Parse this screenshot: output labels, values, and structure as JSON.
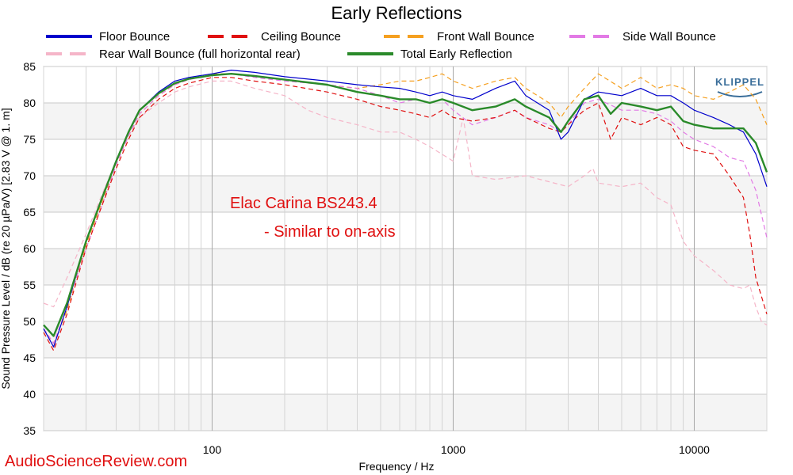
{
  "chart_data": {
    "type": "line",
    "title": "Early Reflections",
    "xlabel": "Frequency / Hz",
    "ylabel": "Sound Pressure Level / dB (re 20 µPa/V)  [2.83  V @ 1. m]",
    "x_scale": "log",
    "xlim": [
      20,
      20000
    ],
    "ylim": [
      35,
      85
    ],
    "x_ticks": [
      100,
      1000,
      10000
    ],
    "x_tick_labels": [
      "100",
      "1000",
      "10000"
    ],
    "y_ticks": [
      35,
      40,
      45,
      50,
      55,
      60,
      65,
      70,
      75,
      80,
      85
    ],
    "y_tick_labels": [
      "35",
      "40",
      "45",
      "50",
      "55",
      "60",
      "65",
      "70",
      "75",
      "80",
      "85"
    ],
    "grid": true,
    "legend_position": "top",
    "annotations": [
      "Elac Carina BS243.4",
      "- Similar to on-axis"
    ],
    "series": [
      {
        "name": "Floor Bounce",
        "color": "#0000cc",
        "dash": "solid",
        "points": [
          [
            20,
            49
          ],
          [
            22,
            46.5
          ],
          [
            25,
            52
          ],
          [
            30,
            61
          ],
          [
            35,
            67
          ],
          [
            40,
            72
          ],
          [
            45,
            76
          ],
          [
            50,
            79
          ],
          [
            60,
            81.5
          ],
          [
            70,
            83
          ],
          [
            80,
            83.5
          ],
          [
            100,
            84
          ],
          [
            120,
            84.5
          ],
          [
            150,
            84.2
          ],
          [
            200,
            83.6
          ],
          [
            300,
            83
          ],
          [
            400,
            82.5
          ],
          [
            500,
            82.2
          ],
          [
            600,
            82
          ],
          [
            700,
            81.5
          ],
          [
            800,
            81
          ],
          [
            900,
            81.5
          ],
          [
            1000,
            81
          ],
          [
            1200,
            80.5
          ],
          [
            1500,
            82
          ],
          [
            1800,
            83
          ],
          [
            2000,
            81
          ],
          [
            2500,
            79
          ],
          [
            2800,
            75
          ],
          [
            3000,
            76
          ],
          [
            3500,
            80.5
          ],
          [
            4000,
            81.5
          ],
          [
            5000,
            81
          ],
          [
            6000,
            82
          ],
          [
            7000,
            81
          ],
          [
            8000,
            81
          ],
          [
            9000,
            80
          ],
          [
            10000,
            79
          ],
          [
            12000,
            78
          ],
          [
            14000,
            77
          ],
          [
            16000,
            76
          ],
          [
            18000,
            73
          ],
          [
            20000,
            68.5
          ]
        ]
      },
      {
        "name": "Ceiling Bounce",
        "color": "#e01010",
        "dash": "dashed",
        "points": [
          [
            20,
            48.5
          ],
          [
            22,
            46
          ],
          [
            25,
            51
          ],
          [
            30,
            60
          ],
          [
            35,
            66
          ],
          [
            40,
            71
          ],
          [
            45,
            75
          ],
          [
            50,
            78
          ],
          [
            60,
            80.5
          ],
          [
            70,
            82
          ],
          [
            80,
            82.7
          ],
          [
            100,
            83.5
          ],
          [
            120,
            83.5
          ],
          [
            150,
            83
          ],
          [
            200,
            82.5
          ],
          [
            300,
            81.5
          ],
          [
            400,
            80.5
          ],
          [
            500,
            79.5
          ],
          [
            600,
            79
          ],
          [
            700,
            78.5
          ],
          [
            800,
            78
          ],
          [
            900,
            79
          ],
          [
            1000,
            78
          ],
          [
            1200,
            77.5
          ],
          [
            1500,
            78
          ],
          [
            1800,
            79
          ],
          [
            2000,
            78
          ],
          [
            2500,
            76.5
          ],
          [
            2800,
            76
          ],
          [
            3000,
            77
          ],
          [
            3500,
            79
          ],
          [
            4000,
            80
          ],
          [
            4500,
            75
          ],
          [
            5000,
            78
          ],
          [
            6000,
            77
          ],
          [
            7000,
            78
          ],
          [
            8000,
            77
          ],
          [
            9000,
            74
          ],
          [
            10000,
            73.5
          ],
          [
            12000,
            73
          ],
          [
            14000,
            70
          ],
          [
            16000,
            67
          ],
          [
            17000,
            62
          ],
          [
            18000,
            56
          ],
          [
            20000,
            51
          ]
        ]
      },
      {
        "name": "Front Wall Bounce",
        "color": "#f5a020",
        "dash": "dashed",
        "points": [
          [
            20,
            49
          ],
          [
            22,
            47
          ],
          [
            25,
            51.5
          ],
          [
            30,
            60.5
          ],
          [
            35,
            66.5
          ],
          [
            40,
            71.5
          ],
          [
            45,
            75.5
          ],
          [
            50,
            78.5
          ],
          [
            60,
            81
          ],
          [
            70,
            82.5
          ],
          [
            80,
            83.2
          ],
          [
            100,
            84
          ],
          [
            120,
            84
          ],
          [
            150,
            83.7
          ],
          [
            200,
            83.2
          ],
          [
            300,
            82.5
          ],
          [
            400,
            82
          ],
          [
            500,
            82.5
          ],
          [
            600,
            83
          ],
          [
            700,
            83
          ],
          [
            800,
            83.5
          ],
          [
            900,
            84
          ],
          [
            1000,
            83
          ],
          [
            1200,
            82
          ],
          [
            1500,
            83
          ],
          [
            1800,
            83.5
          ],
          [
            2000,
            82
          ],
          [
            2500,
            80
          ],
          [
            2800,
            78
          ],
          [
            3000,
            79.5
          ],
          [
            3500,
            82
          ],
          [
            4000,
            84
          ],
          [
            5000,
            82
          ],
          [
            6000,
            83.5
          ],
          [
            7000,
            82
          ],
          [
            8000,
            82.5
          ],
          [
            9000,
            82
          ],
          [
            10000,
            81
          ],
          [
            12000,
            80.5
          ],
          [
            14000,
            81.5
          ],
          [
            16000,
            82.5
          ],
          [
            18000,
            80.5
          ],
          [
            20000,
            77
          ]
        ]
      },
      {
        "name": "Side Wall Bounce",
        "color": "#e27ae5",
        "dash": "dashed",
        "points": [
          [
            20,
            49
          ],
          [
            22,
            47
          ],
          [
            25,
            52
          ],
          [
            30,
            60
          ],
          [
            35,
            66
          ],
          [
            40,
            71.5
          ],
          [
            45,
            75.5
          ],
          [
            50,
            78.5
          ],
          [
            60,
            81
          ],
          [
            70,
            82.5
          ],
          [
            80,
            83.2
          ],
          [
            100,
            83.8
          ],
          [
            120,
            84
          ],
          [
            150,
            83.5
          ],
          [
            200,
            83
          ],
          [
            300,
            82.5
          ],
          [
            400,
            82
          ],
          [
            500,
            81
          ],
          [
            600,
            80
          ],
          [
            700,
            80.5
          ],
          [
            800,
            80
          ],
          [
            900,
            80.5
          ],
          [
            1000,
            79
          ],
          [
            1200,
            77
          ],
          [
            1500,
            78
          ],
          [
            1800,
            79
          ],
          [
            2000,
            78
          ],
          [
            2500,
            77
          ],
          [
            2800,
            76
          ],
          [
            3000,
            77
          ],
          [
            3500,
            80
          ],
          [
            4000,
            80.5
          ],
          [
            5000,
            79
          ],
          [
            6000,
            79
          ],
          [
            7000,
            78.5
          ],
          [
            8000,
            77.5
          ],
          [
            9000,
            76
          ],
          [
            10000,
            75
          ],
          [
            12000,
            74
          ],
          [
            14000,
            72.5
          ],
          [
            16000,
            72
          ],
          [
            18000,
            68
          ],
          [
            20000,
            61.5
          ]
        ]
      },
      {
        "name": "Rear Wall Bounce (full horizontal rear)",
        "color": "#f5b5c8",
        "dash": "dashed",
        "points": [
          [
            20,
            52.5
          ],
          [
            22,
            52
          ],
          [
            25,
            56
          ],
          [
            30,
            62
          ],
          [
            35,
            67.5
          ],
          [
            40,
            72
          ],
          [
            45,
            75.5
          ],
          [
            50,
            78
          ],
          [
            60,
            80
          ],
          [
            70,
            81.5
          ],
          [
            80,
            82.2
          ],
          [
            100,
            83
          ],
          [
            120,
            83
          ],
          [
            150,
            82
          ],
          [
            200,
            81
          ],
          [
            250,
            79
          ],
          [
            300,
            78
          ],
          [
            400,
            77
          ],
          [
            500,
            76
          ],
          [
            600,
            76
          ],
          [
            700,
            75
          ],
          [
            800,
            74
          ],
          [
            1000,
            72
          ],
          [
            1100,
            78
          ],
          [
            1200,
            70
          ],
          [
            1500,
            69.5
          ],
          [
            2000,
            70
          ],
          [
            3000,
            68.5
          ],
          [
            3500,
            70
          ],
          [
            3800,
            71
          ],
          [
            4000,
            69
          ],
          [
            5000,
            68.5
          ],
          [
            6000,
            69
          ],
          [
            7000,
            67
          ],
          [
            8000,
            66
          ],
          [
            9000,
            61
          ],
          [
            10000,
            59
          ],
          [
            12000,
            57
          ],
          [
            14000,
            55
          ],
          [
            16000,
            54.5
          ],
          [
            17000,
            55
          ],
          [
            18000,
            52
          ],
          [
            19000,
            50
          ],
          [
            20000,
            49.5
          ]
        ]
      },
      {
        "name": "Total Early Reflection",
        "color": "#2a8a2a",
        "dash": "solid",
        "points": [
          [
            20,
            49.5
          ],
          [
            22,
            48
          ],
          [
            25,
            52.5
          ],
          [
            30,
            61
          ],
          [
            35,
            67
          ],
          [
            40,
            72
          ],
          [
            45,
            76
          ],
          [
            50,
            79
          ],
          [
            60,
            81.3
          ],
          [
            70,
            82.7
          ],
          [
            80,
            83.3
          ],
          [
            100,
            83.8
          ],
          [
            120,
            84
          ],
          [
            150,
            83.7
          ],
          [
            200,
            83.2
          ],
          [
            300,
            82.5
          ],
          [
            400,
            81.5
          ],
          [
            500,
            81
          ],
          [
            600,
            80.5
          ],
          [
            700,
            80.5
          ],
          [
            800,
            80
          ],
          [
            900,
            80.5
          ],
          [
            1000,
            80
          ],
          [
            1200,
            79
          ],
          [
            1500,
            79.5
          ],
          [
            1800,
            80.5
          ],
          [
            2000,
            79.5
          ],
          [
            2500,
            78
          ],
          [
            2800,
            76
          ],
          [
            3000,
            77.5
          ],
          [
            3500,
            80.5
          ],
          [
            4000,
            81
          ],
          [
            4500,
            78.5
          ],
          [
            5000,
            80
          ],
          [
            6000,
            79.5
          ],
          [
            7000,
            79
          ],
          [
            8000,
            79.5
          ],
          [
            9000,
            77.5
          ],
          [
            10000,
            77
          ],
          [
            12000,
            76.5
          ],
          [
            14000,
            76.5
          ],
          [
            16000,
            76.5
          ],
          [
            18000,
            74.5
          ],
          [
            20000,
            70.5
          ]
        ]
      }
    ]
  },
  "watermark": "AudioScienceReview.com",
  "logo_text": "KLIPPEL"
}
